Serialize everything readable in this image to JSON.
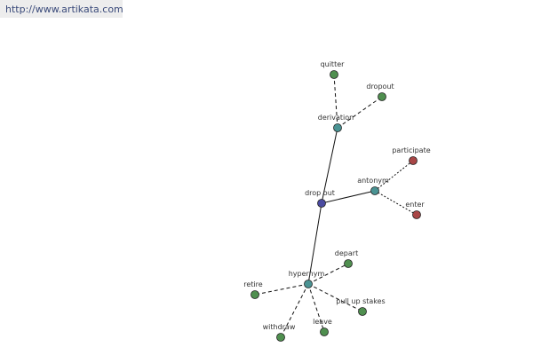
{
  "header": {
    "url": "http://www.artikata.com"
  },
  "nodes": [
    {
      "label": "drop out"
    },
    {
      "label": "derivation"
    },
    {
      "label": "quitter"
    },
    {
      "label": "dropout"
    },
    {
      "label": "antonym"
    },
    {
      "label": "participate"
    },
    {
      "label": "enter"
    },
    {
      "label": "hypernym"
    },
    {
      "label": "depart"
    },
    {
      "label": "retire"
    },
    {
      "label": "pull up stakes"
    },
    {
      "label": "withdraw"
    },
    {
      "label": "leave"
    }
  ]
}
